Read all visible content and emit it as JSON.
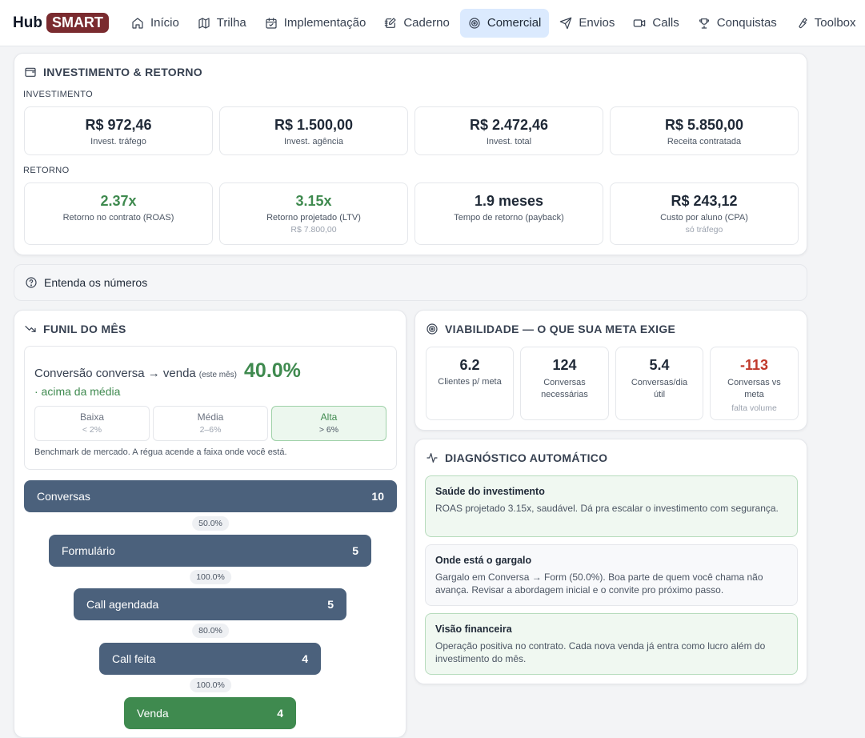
{
  "brand": {
    "hub": "Hub",
    "smart": "SMART"
  },
  "nav": [
    {
      "label": "Início",
      "icon": "home-icon",
      "active": false
    },
    {
      "label": "Trilha",
      "icon": "map-icon",
      "active": false
    },
    {
      "label": "Implementação",
      "icon": "calendar-check-icon",
      "active": false
    },
    {
      "label": "Caderno",
      "icon": "notebook-pen-icon",
      "active": false
    },
    {
      "label": "Comercial",
      "icon": "target-icon",
      "active": true
    },
    {
      "label": "Envios",
      "icon": "send-icon",
      "active": false
    },
    {
      "label": "Calls",
      "icon": "video-icon",
      "active": false
    },
    {
      "label": "Conquistas",
      "icon": "trophy-icon",
      "active": false
    },
    {
      "label": "Toolbox",
      "icon": "wrench-icon",
      "active": false
    }
  ],
  "invest": {
    "title": "INVESTIMENTO & RETORNO",
    "section_invest": "INVESTIMENTO",
    "section_retorno": "RETORNO",
    "invest_metrics": [
      {
        "value": "R$ 972,46",
        "label": "Invest. tráfego"
      },
      {
        "value": "R$ 1.500,00",
        "label": "Invest. agência"
      },
      {
        "value": "R$ 2.472,46",
        "label": "Invest. total"
      },
      {
        "value": "R$ 5.850,00",
        "label": "Receita contratada"
      }
    ],
    "retorno_metrics": [
      {
        "value": "2.37x",
        "label": "Retorno no contrato (ROAS)",
        "sub": "",
        "color": "#3f8a4f"
      },
      {
        "value": "3.15x",
        "label": "Retorno projetado (LTV)",
        "sub": "R$ 7.800,00",
        "color": "#3f8a4f"
      },
      {
        "value": "1.9 meses",
        "label": "Tempo de retorno (payback)",
        "sub": "",
        "color": "#1f2937"
      },
      {
        "value": "R$ 243,12",
        "label": "Custo por aluno (CPA)",
        "sub": "só tráfego",
        "color": "#1f2937"
      }
    ]
  },
  "entenda": {
    "label": "Entenda os números"
  },
  "funil": {
    "title": "FUNIL DO MÊS",
    "conv_text": "Conversão conversa → venda",
    "conv_small": "(este mês)",
    "conv_pct": "40.0%",
    "conv_sub": "· acima da média",
    "bench": [
      {
        "name": "Baixa",
        "range": "< 2%",
        "active": false
      },
      {
        "name": "Média",
        "range": "2–6%",
        "active": false
      },
      {
        "name": "Alta",
        "range": "> 6%",
        "active": true
      }
    ],
    "bench_note": "Benchmark de mercado. A régua acende a faixa onde você está.",
    "stages": [
      {
        "label": "Conversas",
        "value": "10",
        "color": "#4b617c"
      },
      {
        "label": "Formulário",
        "value": "5",
        "color": "#4b617c"
      },
      {
        "label": "Call agendada",
        "value": "5",
        "color": "#4b617c"
      },
      {
        "label": "Call feita",
        "value": "4",
        "color": "#4b617c"
      },
      {
        "label": "Venda",
        "value": "4",
        "color": "#3f8a4f"
      }
    ],
    "rates": [
      "50.0%",
      "100.0%",
      "80.0%",
      "100.0%"
    ]
  },
  "viab": {
    "title": "VIABILIDADE — O QUE SUA META EXIGE",
    "metrics": [
      {
        "value": "6.2",
        "label": "Clientes p/ meta",
        "sub": "",
        "color": "#1f2937"
      },
      {
        "value": "124",
        "label": "Conversas necessárias",
        "sub": "",
        "color": "#1f2937"
      },
      {
        "value": "5.4",
        "label": "Conversas/dia útil",
        "sub": "",
        "color": "#1f2937"
      },
      {
        "value": "-113",
        "label": "Conversas vs meta",
        "sub": "falta volume",
        "color": "#c0392b"
      }
    ]
  },
  "diag": {
    "title": "DIAGNÓSTICO AUTOMÁTICO",
    "items": [
      {
        "title": "Saúde do investimento",
        "text": "ROAS projetado 3.15x, saudável. Dá pra escalar o investimento com segurança.",
        "tone": "good"
      },
      {
        "title": "Onde está o gargalo",
        "text": "Gargalo em Conversa → Form (50.0%). Boa parte de quem você chama não avança. Revisar a abordagem inicial e o convite pro próximo passo.",
        "tone": "neutral"
      },
      {
        "title": "Visão financeira",
        "text": "Operação positiva no contrato. Cada nova venda já entra como lucro além do investimento do mês.",
        "tone": "good"
      }
    ]
  }
}
